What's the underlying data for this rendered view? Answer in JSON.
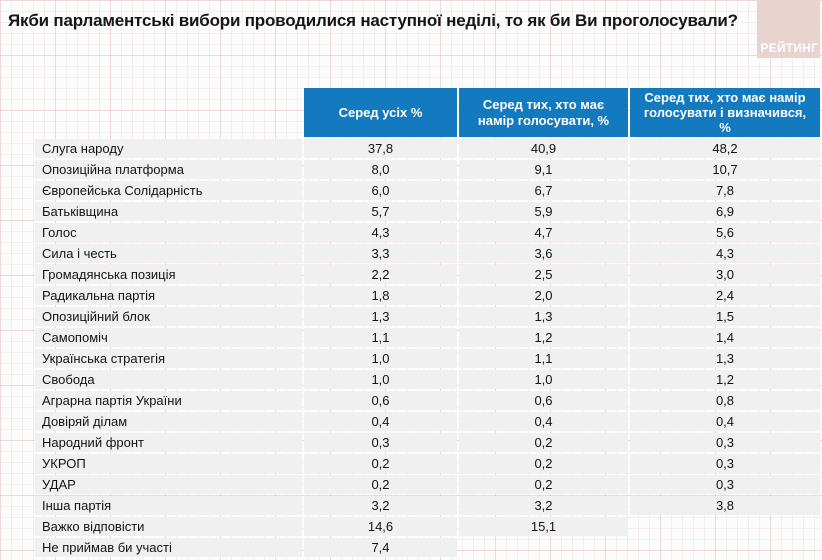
{
  "title": "Якби парламентські вибори проводилися наступної неділі, то як би Ви проголосували?",
  "logo": {
    "text": "РЕЙТИНГ"
  },
  "colors": {
    "header_blue": "#137abf",
    "row_gray": "#f0f0f0",
    "logo_pink": "#e9d3cf",
    "header_text": "#ffffff",
    "body_text": "#131313"
  },
  "table": {
    "columns": [
      "Серед усіх %",
      "Серед тих, хто має намір голосувати, %",
      "Серед тих, хто має намір голосувати і визначився, %"
    ],
    "rows": [
      {
        "label": "Слуга народу",
        "values": [
          "37,8",
          "40,9",
          "48,2"
        ]
      },
      {
        "label": "Опозиційна платформа",
        "values": [
          "8,0",
          "9,1",
          "10,7"
        ]
      },
      {
        "label": "Європейська Солідарність",
        "values": [
          "6,0",
          "6,7",
          "7,8"
        ]
      },
      {
        "label": "Батьківщина",
        "values": [
          "5,7",
          "5,9",
          "6,9"
        ]
      },
      {
        "label": "Голос",
        "values": [
          "4,3",
          "4,7",
          "5,6"
        ]
      },
      {
        "label": "Сила і честь",
        "values": [
          "3,3",
          "3,6",
          "4,3"
        ]
      },
      {
        "label": "Громадянська позиція",
        "values": [
          "2,2",
          "2,5",
          "3,0"
        ]
      },
      {
        "label": "Радикальна партія",
        "values": [
          "1,8",
          "2,0",
          "2,4"
        ]
      },
      {
        "label": "Опозиційний блок",
        "values": [
          "1,3",
          "1,3",
          "1,5"
        ]
      },
      {
        "label": "Самопоміч",
        "values": [
          "1,1",
          "1,2",
          "1,4"
        ]
      },
      {
        "label": "Українська стратегія",
        "values": [
          "1,0",
          "1,1",
          "1,3"
        ]
      },
      {
        "label": "Свобода",
        "values": [
          "1,0",
          "1,0",
          "1,2"
        ]
      },
      {
        "label": "Аграрна партія України",
        "values": [
          "0,6",
          "0,6",
          "0,8"
        ]
      },
      {
        "label": "Довіряй ділам",
        "values": [
          "0,4",
          "0,4",
          "0,4"
        ]
      },
      {
        "label": "Народний фронт",
        "values": [
          "0,3",
          "0,2",
          "0,3"
        ]
      },
      {
        "label": "УКРОП",
        "values": [
          "0,2",
          "0,2",
          "0,3"
        ]
      },
      {
        "label": "УДАР",
        "values": [
          "0,2",
          "0,2",
          "0,3"
        ]
      },
      {
        "label": "Інша партія",
        "values": [
          "3,2",
          "3,2",
          "3,8"
        ]
      },
      {
        "label": "Важко відповісти",
        "values": [
          "14,6",
          "15,1",
          null
        ]
      },
      {
        "label": "Не приймав би участі",
        "values": [
          "7,4",
          null,
          null
        ]
      }
    ]
  },
  "chart_data": {
    "type": "table",
    "title": "Якби парламентські вибори проводилися наступної неділі, то як би Ви проголосували?",
    "columns": [
      "Серед усіх %",
      "Серед тих, хто має намір голосувати, %",
      "Серед тих, хто має намір голосувати і визначився, %"
    ],
    "rows": [
      [
        "Слуга народу",
        37.8,
        40.9,
        48.2
      ],
      [
        "Опозиційна платформа",
        8.0,
        9.1,
        10.7
      ],
      [
        "Європейська Солідарність",
        6.0,
        6.7,
        7.8
      ],
      [
        "Батьківщина",
        5.7,
        5.9,
        6.9
      ],
      [
        "Голос",
        4.3,
        4.7,
        5.6
      ],
      [
        "Сила і честь",
        3.3,
        3.6,
        4.3
      ],
      [
        "Громадянська позиція",
        2.2,
        2.5,
        3.0
      ],
      [
        "Радикальна партія",
        1.8,
        2.0,
        2.4
      ],
      [
        "Опозиційний блок",
        1.3,
        1.3,
        1.5
      ],
      [
        "Самопоміч",
        1.1,
        1.2,
        1.4
      ],
      [
        "Українська стратегія",
        1.0,
        1.1,
        1.3
      ],
      [
        "Свобода",
        1.0,
        1.0,
        1.2
      ],
      [
        "Аграрна партія України",
        0.6,
        0.6,
        0.8
      ],
      [
        "Довіряй ділам",
        0.4,
        0.4,
        0.4
      ],
      [
        "Народний фронт",
        0.3,
        0.2,
        0.3
      ],
      [
        "УКРОП",
        0.2,
        0.2,
        0.3
      ],
      [
        "УДАР",
        0.2,
        0.2,
        0.3
      ],
      [
        "Інша партія",
        3.2,
        3.2,
        3.8
      ],
      [
        "Важко відповісти",
        14.6,
        15.1,
        null
      ],
      [
        "Не приймав би участі",
        7.4,
        null,
        null
      ]
    ]
  }
}
